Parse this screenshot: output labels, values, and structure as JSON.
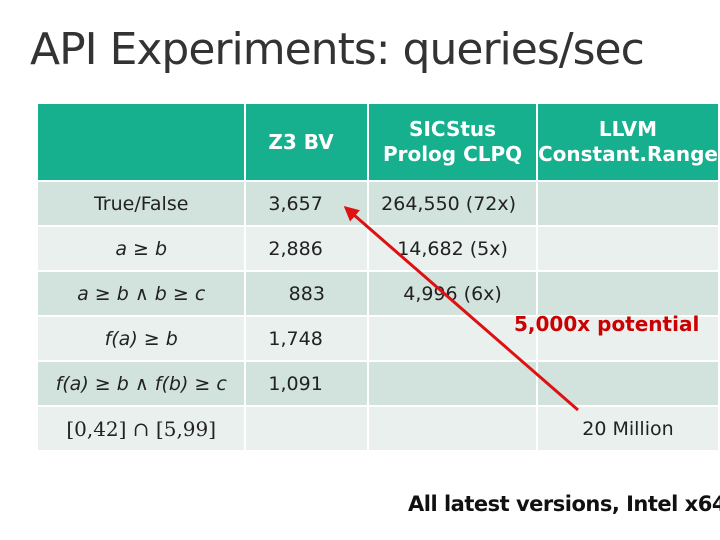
{
  "slide": {
    "title": "API Experiments: queries/sec",
    "footer": "All latest versions, Intel x64"
  },
  "table": {
    "headers": [
      "",
      "Z3 BV",
      "SICStus\nProlog CLPQ",
      "LLVM\nConstant.Range"
    ],
    "rows": [
      {
        "query": "True/False",
        "z3": "3,657",
        "sicstus": "264,550 (72x)",
        "llvm": ""
      },
      {
        "query": "a ≥ b",
        "z3": "2,886",
        "sicstus": "14,682 (5x)",
        "llvm": ""
      },
      {
        "query": "a ≥ b ∧ b ≥ c",
        "z3": "883",
        "sicstus": "4,996 (6x)",
        "llvm": ""
      },
      {
        "query": "f(a) ≥ b",
        "z3": "1,748",
        "sicstus": "",
        "llvm": ""
      },
      {
        "query": "f(a) ≥ b ∧ f(b) ≥ c",
        "z3": "1,091",
        "sicstus": "",
        "llvm": ""
      },
      {
        "query": "[0,42] ∩ [5,99]",
        "z3": "",
        "sicstus": "",
        "llvm": "20 Million"
      }
    ]
  },
  "annotation": {
    "potential": "5,000x potential",
    "arrow_color": "#dd1111"
  },
  "colors": {
    "header_bg": "#16b08e",
    "row_dark": "#d2e2dd",
    "row_light": "#e9f0ee"
  }
}
